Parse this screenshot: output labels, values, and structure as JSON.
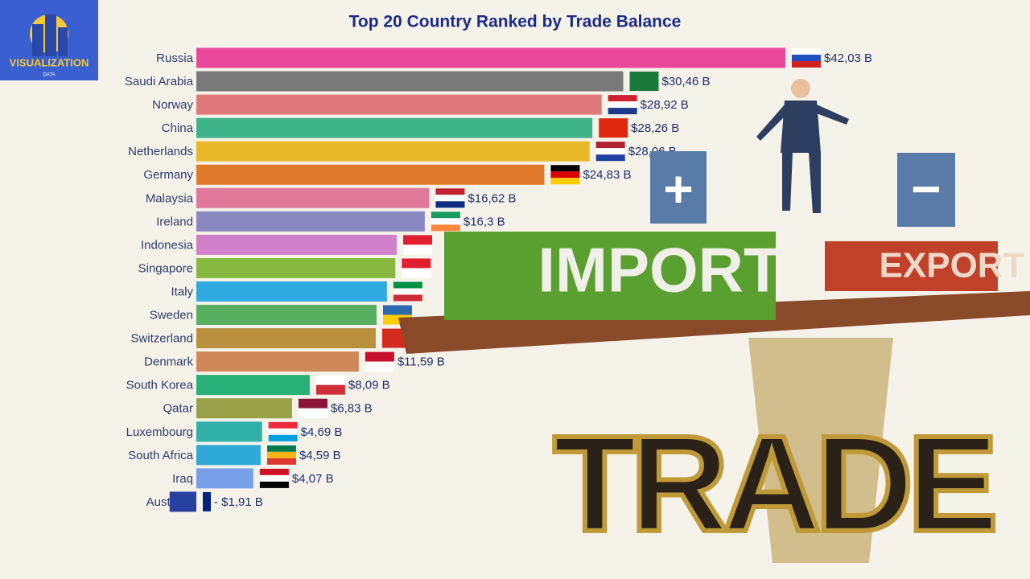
{
  "logo": {
    "title": "VISUALIZATION",
    "subtitle": "DATA"
  },
  "chart_data": {
    "type": "bar",
    "orientation": "horizontal",
    "title": "Top 20 Country Ranked by Trade Balance",
    "categories": [
      "Russia",
      "Saudi Arabia",
      "Norway",
      "China",
      "Netherlands",
      "Germany",
      "Malaysia",
      "Ireland",
      "Indonesia",
      "Singapore",
      "Italy",
      "Sweden",
      "Switzerland",
      "Denmark",
      "South Korea",
      "Qatar",
      "Luxembourg",
      "South Africa",
      "Iraq",
      "Australia"
    ],
    "values": [
      42.03,
      30.46,
      28.92,
      28.26,
      28.06,
      24.83,
      16.62,
      16.3,
      14.3,
      14.2,
      13.6,
      12.86,
      12.8,
      11.59,
      8.09,
      6.83,
      4.69,
      4.59,
      4.07,
      -1.91
    ],
    "value_labels": [
      "$42,03 B",
      "$30,46 B",
      "$28,92 B",
      "$28,26 B",
      "$28,06 B",
      "$24,83 B",
      "$16,62 B",
      "$16,3 B",
      null,
      null,
      null,
      null,
      null,
      "$11,59 B",
      "$8,09 B",
      "$6,83 B",
      "$4,69 B",
      "$4,59 B",
      "$4,07 B",
      "- $1,91 B"
    ],
    "colors": [
      "#e8479a",
      "#7a7a7a",
      "#e07a7a",
      "#3fb38a",
      "#e8b828",
      "#e07a2a",
      "#e0789a",
      "#8a88c0",
      "#d080c8",
      "#88b840",
      "#30a8e0",
      "#58b060",
      "#b89040",
      "#d08858",
      "#28b078",
      "#98a048",
      "#30b0a8",
      "#30a8d8",
      "#78a0e8",
      "#2840a0"
    ],
    "xlim": [
      0,
      42.03
    ]
  },
  "illustration": {
    "left_block": "IMPORT",
    "right_block": "EXPORT",
    "base": "TRADE",
    "plus": "+",
    "minus": "−"
  }
}
